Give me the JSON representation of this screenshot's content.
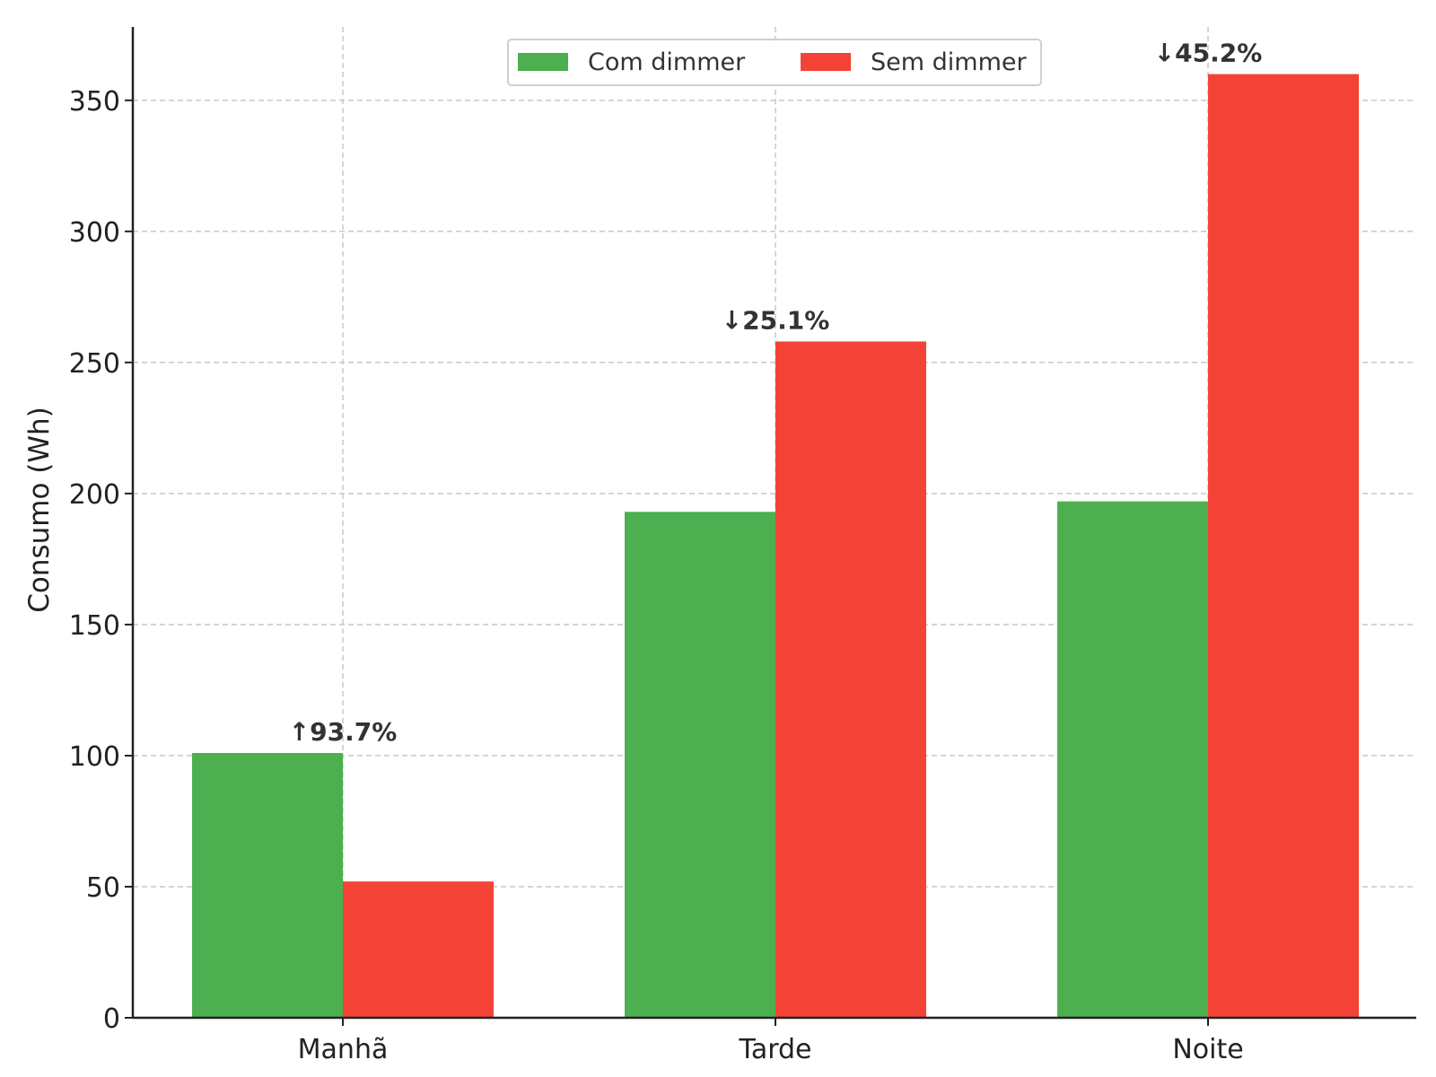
{
  "chart_data": {
    "type": "bar",
    "categories": [
      "Manhã",
      "Tarde",
      "Noite"
    ],
    "series": [
      {
        "name": "Com dimmer",
        "color": "#4caf50",
        "values": [
          101,
          193,
          197
        ]
      },
      {
        "name": "Sem dimmer",
        "color": "#f44336",
        "values": [
          52,
          258,
          360
        ]
      }
    ],
    "annotations": [
      "↑93.7%",
      "↓25.1%",
      "↓45.2%"
    ],
    "xlabel": "",
    "ylabel": "Consumo (Wh)",
    "ylim": [
      0,
      378
    ],
    "yticks": [
      0,
      50,
      100,
      150,
      200,
      250,
      300,
      350
    ],
    "grid": true,
    "grid_style": "dashed",
    "legend_position": "top-center"
  }
}
